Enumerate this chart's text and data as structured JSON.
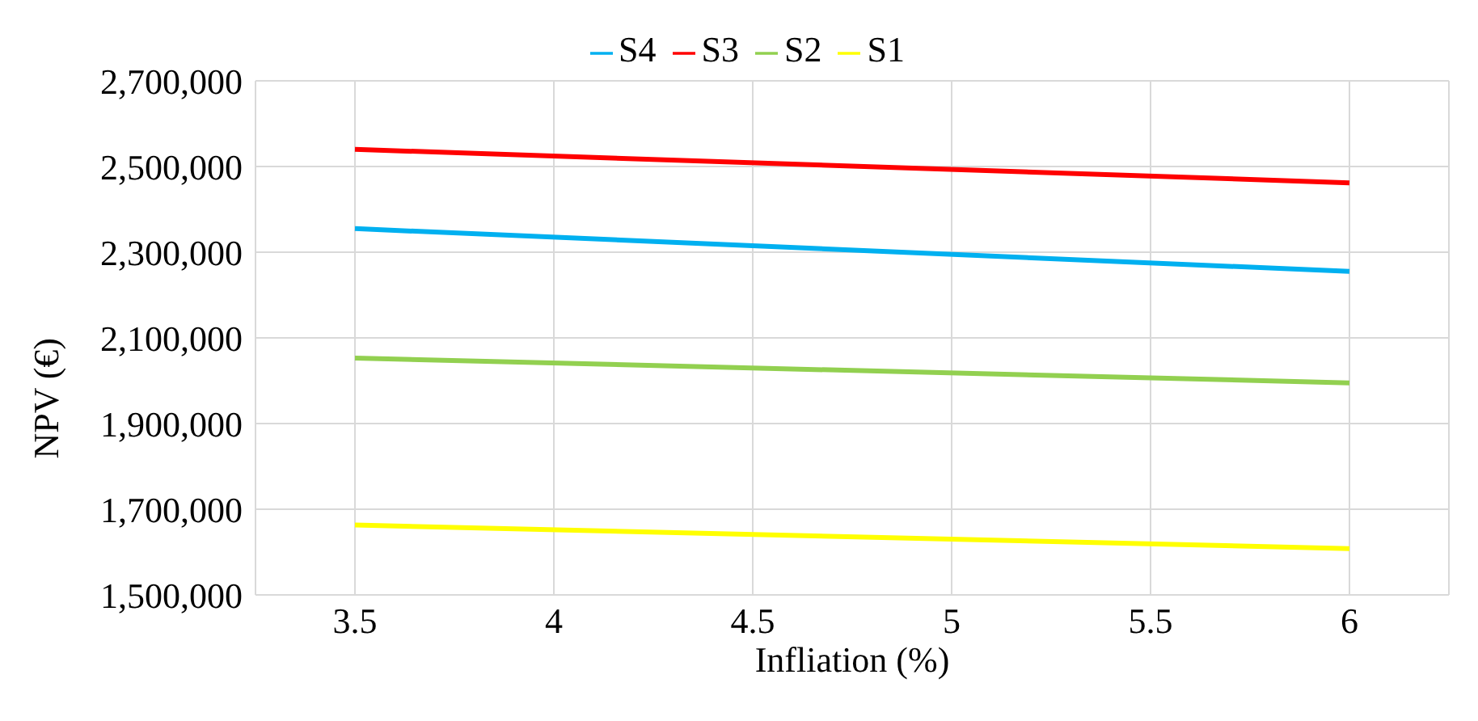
{
  "chart_data": {
    "type": "line",
    "xlabel": "Infliation (%)",
    "ylabel": "NPV (€)",
    "x": [
      3.5,
      6
    ],
    "series": [
      {
        "name": "S4",
        "color": "#00b0f0",
        "values": [
          2355000,
          2255000
        ]
      },
      {
        "name": "S3",
        "color": "#ff0000",
        "values": [
          2540000,
          2462000
        ]
      },
      {
        "name": "S2",
        "color": "#92d050",
        "values": [
          2053000,
          1995000
        ]
      },
      {
        "name": "S1",
        "color": "#ffff00",
        "values": [
          1663000,
          1608000
        ]
      }
    ],
    "xlim": [
      3.25,
      6.25
    ],
    "xticks": [
      3.5,
      4,
      4.5,
      5,
      5.5,
      6
    ],
    "ylim": [
      1500000,
      2700000
    ],
    "yticks": [
      {
        "value": 1500000,
        "label": "1,500,000"
      },
      {
        "value": 1700000,
        "label": "1,700,000"
      },
      {
        "value": 1900000,
        "label": "1,900,000"
      },
      {
        "value": 2100000,
        "label": "2,100,000"
      },
      {
        "value": 2300000,
        "label": "2,300,000"
      },
      {
        "value": 2500000,
        "label": "2,500,000"
      },
      {
        "value": 2700000,
        "label": "2,700,000"
      }
    ],
    "grid": true,
    "legend": "top",
    "marker": "none",
    "line_style": "solid"
  }
}
